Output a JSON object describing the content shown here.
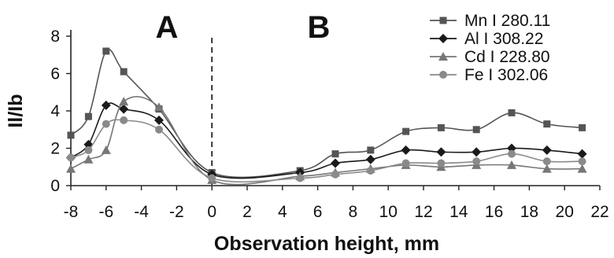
{
  "chart_data": {
    "type": "line",
    "xlabel": "Observation height, mm",
    "ylabel": "Il/Ib",
    "xlim": [
      -8,
      22
    ],
    "ylim": [
      0,
      8
    ],
    "xticks": [
      -8,
      -6,
      -4,
      -2,
      0,
      2,
      4,
      6,
      8,
      10,
      12,
      14,
      16,
      18,
      20,
      22
    ],
    "yticks": [
      0,
      2,
      4,
      6,
      8
    ],
    "x_tick_labels": [
      "-8",
      "-6",
      "-4",
      "-2",
      "0",
      "2",
      "4",
      "6",
      "8",
      "10",
      "12",
      "14",
      "16",
      "18",
      "20",
      "22"
    ],
    "y_tick_labels": [
      "0",
      "2",
      "4",
      "6",
      "8"
    ],
    "divider_x": 0,
    "region_labels": [
      "A",
      "B"
    ],
    "legend_position": "top-right",
    "series": [
      {
        "name": "Mn I 280.11",
        "marker": "square",
        "color": "#555555",
        "x": [
          -8,
          -7,
          -6,
          -5,
          -3,
          0,
          5,
          7,
          9,
          11,
          13,
          15,
          17,
          19,
          21
        ],
        "y": [
          2.7,
          3.7,
          7.2,
          6.1,
          4.1,
          0.7,
          0.8,
          1.7,
          1.9,
          2.9,
          3.1,
          3.0,
          3.9,
          3.3,
          3.1
        ]
      },
      {
        "name": "Al I 308.22",
        "marker": "diamond",
        "color": "#1a1a1a",
        "x": [
          -8,
          -7,
          -6,
          -5,
          -3,
          0,
          5,
          7,
          9,
          11,
          13,
          15,
          17,
          19,
          21
        ],
        "y": [
          1.5,
          2.2,
          4.3,
          4.1,
          3.5,
          0.6,
          0.7,
          1.2,
          1.4,
          1.9,
          1.8,
          1.8,
          2.0,
          1.9,
          1.7
        ]
      },
      {
        "name": "Cd I 228.80",
        "marker": "triangle",
        "color": "#777777",
        "x": [
          -8,
          -7,
          -6,
          -5,
          -3,
          0,
          5,
          7,
          9,
          11,
          13,
          15,
          17,
          19,
          21
        ],
        "y": [
          0.9,
          1.4,
          1.9,
          4.5,
          4.2,
          0.3,
          0.5,
          0.7,
          0.9,
          1.1,
          1.0,
          1.1,
          1.1,
          0.9,
          0.9
        ]
      },
      {
        "name": "Fe I 302.06",
        "marker": "circle",
        "color": "#8a8a8a",
        "x": [
          -8,
          -7,
          -6,
          -5,
          -3,
          0,
          5,
          7,
          9,
          11,
          13,
          15,
          17,
          19,
          21
        ],
        "y": [
          1.5,
          1.9,
          3.3,
          3.5,
          3.0,
          0.4,
          0.4,
          0.6,
          0.8,
          1.2,
          1.2,
          1.3,
          1.7,
          1.3,
          1.3
        ]
      }
    ]
  }
}
